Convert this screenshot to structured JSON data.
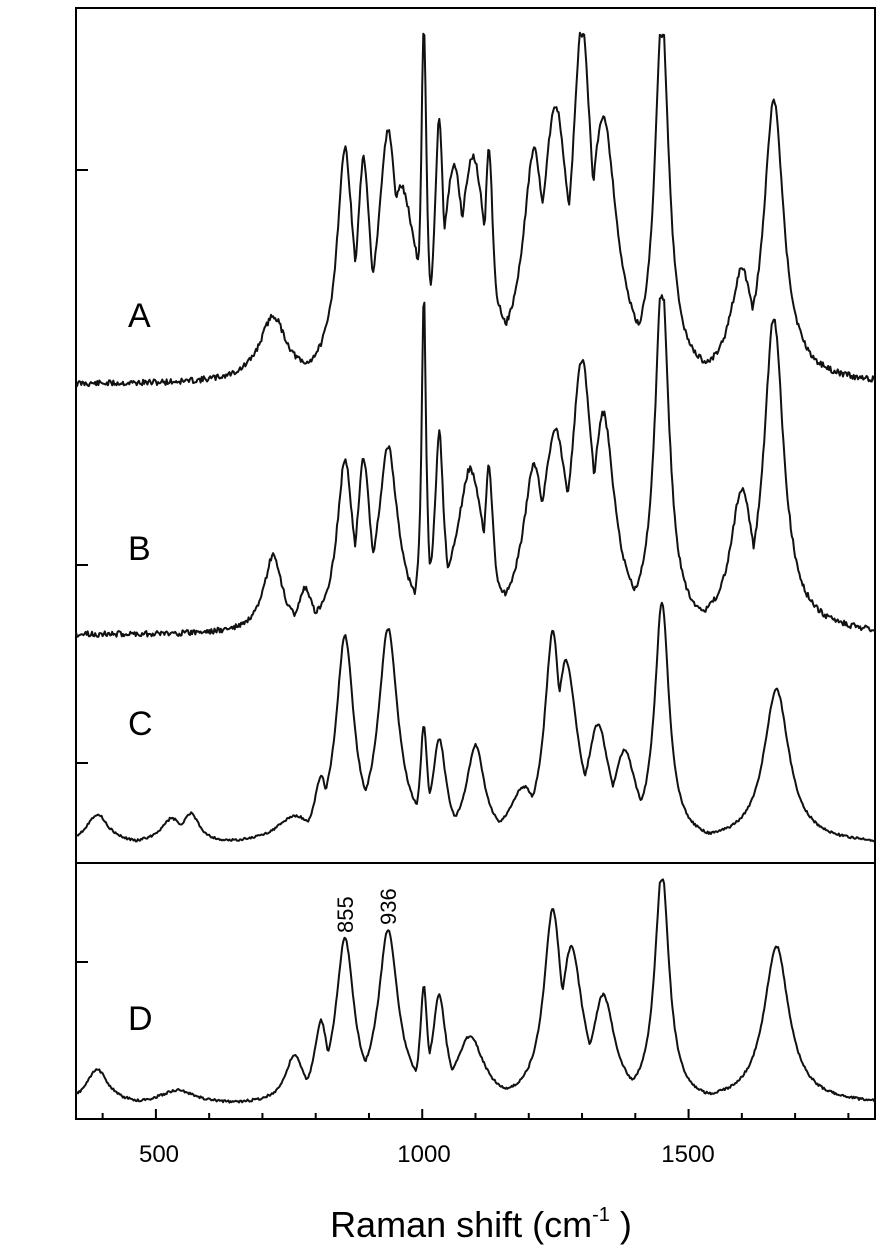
{
  "chart_data": {
    "type": "line",
    "xlabel_main": "Raman shift (cm",
    "xlabel_sup": "-1",
    "xlabel_close": " )",
    "xlim": [
      350,
      1850
    ],
    "xticks": [
      500,
      1000,
      1500
    ],
    "xtick_labels": [
      "500",
      "1000",
      "1500"
    ],
    "panels": [
      {
        "name": "upper",
        "series": [
          {
            "name": "A",
            "peaks": [
              [
                380,
                0.0,
                80
              ],
              [
                720,
                0.18,
                30
              ],
              [
                855,
                0.62,
                18
              ],
              [
                890,
                0.58,
                15
              ],
              [
                936,
                0.66,
                22
              ],
              [
                960,
                0.5,
                35
              ],
              [
                1003,
                0.95,
                6
              ],
              [
                1032,
                0.68,
                10
              ],
              [
                1060,
                0.55,
                25
              ],
              [
                1095,
                0.58,
                30
              ],
              [
                1125,
                0.6,
                10
              ],
              [
                1210,
                0.6,
                25
              ],
              [
                1250,
                0.72,
                30
              ],
              [
                1300,
                0.95,
                22
              ],
              [
                1340,
                0.7,
                30
              ],
              [
                1450,
                1.0,
                16
              ],
              [
                1600,
                0.3,
                25
              ],
              [
                1660,
                0.78,
                22
              ]
            ]
          },
          {
            "name": "B",
            "peaks": [
              [
                720,
                0.22,
                20
              ],
              [
                780,
                0.12,
                15
              ],
              [
                855,
                0.48,
                18
              ],
              [
                890,
                0.48,
                15
              ],
              [
                936,
                0.52,
                22
              ],
              [
                1003,
                0.95,
                5
              ],
              [
                1032,
                0.55,
                10
              ],
              [
                1090,
                0.45,
                30
              ],
              [
                1125,
                0.45,
                10
              ],
              [
                1210,
                0.45,
                25
              ],
              [
                1250,
                0.55,
                30
              ],
              [
                1300,
                0.75,
                25
              ],
              [
                1340,
                0.6,
                25
              ],
              [
                1450,
                1.0,
                16
              ],
              [
                1600,
                0.4,
                25
              ],
              [
                1660,
                0.9,
                22
              ]
            ]
          },
          {
            "name": "C",
            "peaks": [
              [
                390,
                0.12,
                25
              ],
              [
                530,
                0.1,
                25
              ],
              [
                565,
                0.12,
                20
              ],
              [
                760,
                0.1,
                40
              ],
              [
                810,
                0.25,
                15
              ],
              [
                855,
                0.82,
                20
              ],
              [
                936,
                0.85,
                22
              ],
              [
                1003,
                0.45,
                8
              ],
              [
                1032,
                0.4,
                15
              ],
              [
                1100,
                0.38,
                20
              ],
              [
                1190,
                0.2,
                30
              ],
              [
                1245,
                0.82,
                18
              ],
              [
                1270,
                0.7,
                25
              ],
              [
                1330,
                0.45,
                25
              ],
              [
                1380,
                0.35,
                25
              ],
              [
                1450,
                0.96,
                16
              ],
              [
                1665,
                0.62,
                28
              ]
            ]
          }
        ]
      },
      {
        "name": "lower",
        "series": [
          {
            "name": "D",
            "peaks": [
              [
                390,
                0.15,
                25
              ],
              [
                540,
                0.06,
                40
              ],
              [
                760,
                0.2,
                20
              ],
              [
                810,
                0.34,
                15
              ],
              [
                855,
                0.7,
                20
              ],
              [
                936,
                0.74,
                22
              ],
              [
                1003,
                0.48,
                8
              ],
              [
                1032,
                0.45,
                15
              ],
              [
                1090,
                0.28,
                30
              ],
              [
                1245,
                0.82,
                20
              ],
              [
                1280,
                0.65,
                25
              ],
              [
                1340,
                0.45,
                25
              ],
              [
                1450,
                1.0,
                16
              ],
              [
                1665,
                0.68,
                28
              ]
            ]
          }
        ]
      }
    ],
    "annotations": [
      "855",
      "936"
    ]
  }
}
